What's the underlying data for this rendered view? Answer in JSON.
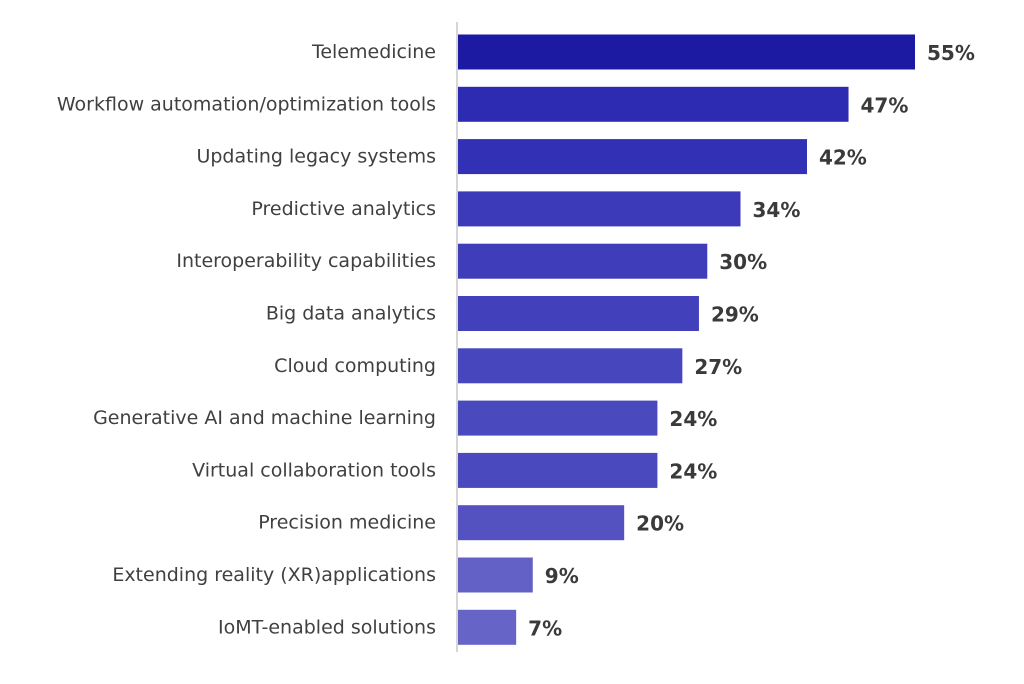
{
  "chart_data": {
    "type": "bar",
    "orientation": "horizontal",
    "title": "",
    "xlabel": "",
    "ylabel": "",
    "xlim": [
      0,
      55
    ],
    "value_suffix": "%",
    "grid": false,
    "categories": [
      "Telemedicine",
      "Workflow automation/optimization tools",
      "Updating legacy systems",
      "Predictive analytics",
      "Interoperability capabilities",
      "Big data analytics",
      "Cloud computing",
      "Generative AI and machine learning",
      "Virtual collaboration tools",
      "Precision medicine",
      "Extending reality (XR)applications",
      "IoMT-enabled solutions"
    ],
    "values": [
      55,
      47,
      42,
      34,
      30,
      29,
      27,
      24,
      24,
      20,
      9,
      7
    ],
    "value_labels": [
      "55%",
      "47%",
      "42%",
      "34%",
      "30%",
      "29%",
      "27%",
      "24%",
      "24%",
      "20%",
      "9%",
      "7%"
    ],
    "bar_colors": [
      "#1c1aa3",
      "#2c2bb2",
      "#3230b4",
      "#3c3ab8",
      "#3f3dba",
      "#4241bb",
      "#4846bd",
      "#4b49be",
      "#4b49be",
      "#5452c1",
      "#6361c6",
      "#6664c7"
    ],
    "axis_color": "#c8c8c8"
  }
}
